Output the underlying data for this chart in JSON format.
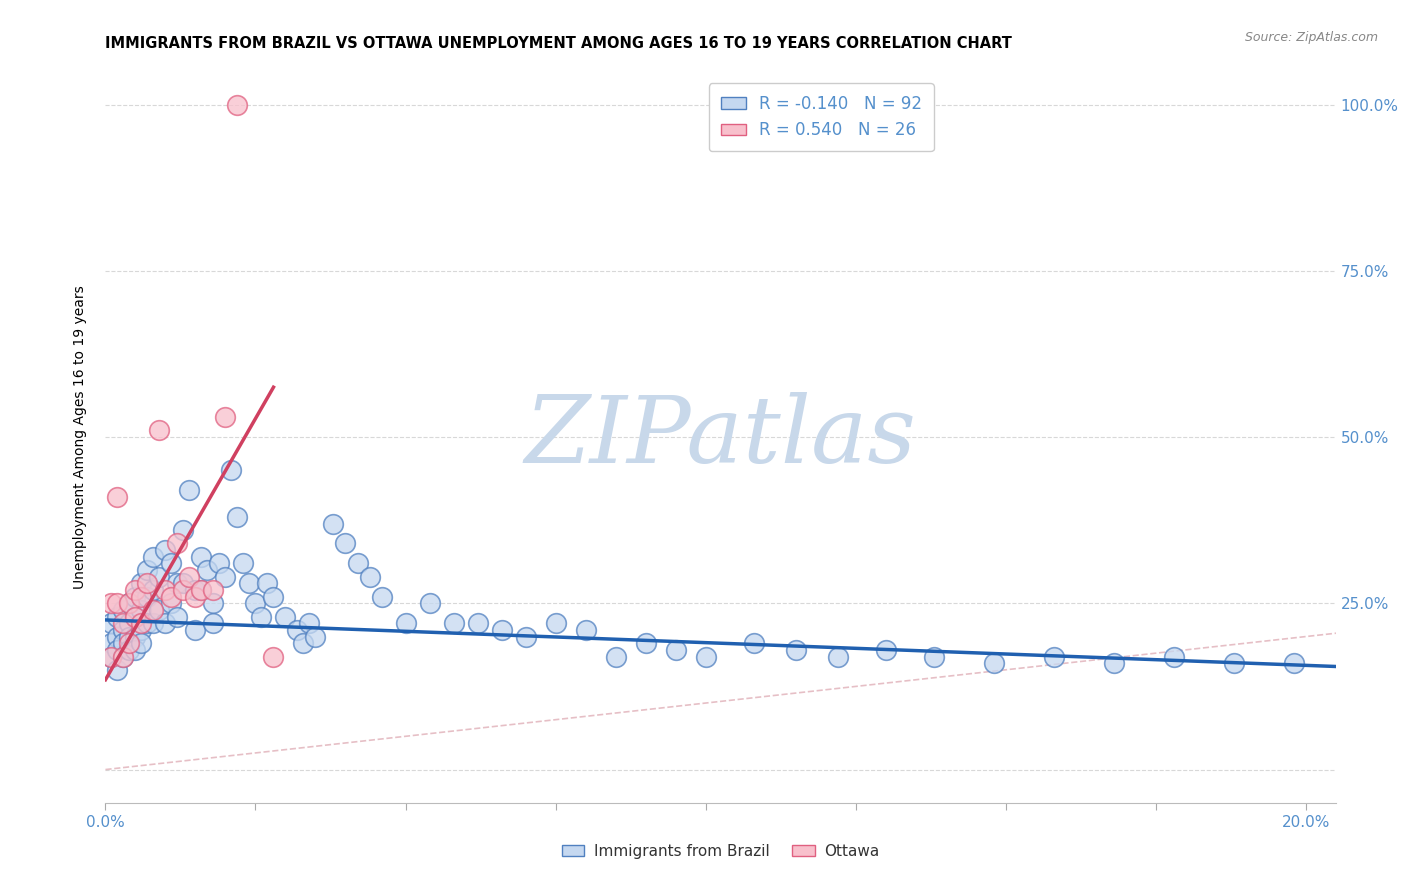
{
  "title": "IMMIGRANTS FROM BRAZIL VS OTTAWA UNEMPLOYMENT AMONG AGES 16 TO 19 YEARS CORRELATION CHART",
  "source": "Source: ZipAtlas.com",
  "ylabel": "Unemployment Among Ages 16 to 19 years",
  "xlim": [
    0.0,
    0.205
  ],
  "ylim": [
    -0.05,
    1.05
  ],
  "blue_R": "-0.140",
  "blue_N": "92",
  "pink_R": "0.540",
  "pink_N": "26",
  "blue_face_color": "#c5d8f0",
  "blue_edge_color": "#5080c0",
  "pink_face_color": "#f8c0cc",
  "pink_edge_color": "#e06080",
  "blue_line_color": "#2060b0",
  "pink_line_color": "#d04060",
  "diag_color": "#e0b0b8",
  "watermark": "ZIPatlas",
  "watermark_color": "#c8d8ea",
  "legend_label_blue": "Immigrants from Brazil",
  "legend_label_pink": "Ottawa",
  "blue_scatter_x": [
    0.001,
    0.001,
    0.001,
    0.002,
    0.002,
    0.002,
    0.002,
    0.003,
    0.003,
    0.003,
    0.003,
    0.004,
    0.004,
    0.004,
    0.004,
    0.005,
    0.005,
    0.005,
    0.005,
    0.006,
    0.006,
    0.006,
    0.006,
    0.007,
    0.007,
    0.007,
    0.008,
    0.008,
    0.008,
    0.009,
    0.009,
    0.01,
    0.01,
    0.011,
    0.011,
    0.012,
    0.012,
    0.013,
    0.013,
    0.014,
    0.015,
    0.015,
    0.016,
    0.016,
    0.017,
    0.018,
    0.018,
    0.019,
    0.02,
    0.021,
    0.022,
    0.023,
    0.024,
    0.025,
    0.026,
    0.027,
    0.028,
    0.03,
    0.032,
    0.033,
    0.034,
    0.035,
    0.038,
    0.04,
    0.042,
    0.044,
    0.046,
    0.05,
    0.054,
    0.058,
    0.062,
    0.066,
    0.07,
    0.075,
    0.08,
    0.085,
    0.09,
    0.095,
    0.1,
    0.108,
    0.115,
    0.122,
    0.13,
    0.138,
    0.148,
    0.158,
    0.168,
    0.178,
    0.188,
    0.198
  ],
  "blue_scatter_y": [
    0.22,
    0.19,
    0.17,
    0.23,
    0.2,
    0.18,
    0.15,
    0.24,
    0.21,
    0.19,
    0.17,
    0.25,
    0.22,
    0.2,
    0.18,
    0.26,
    0.23,
    0.2,
    0.18,
    0.28,
    0.24,
    0.21,
    0.19,
    0.3,
    0.26,
    0.22,
    0.32,
    0.27,
    0.22,
    0.29,
    0.24,
    0.33,
    0.22,
    0.31,
    0.25,
    0.28,
    0.23,
    0.36,
    0.28,
    0.42,
    0.27,
    0.21,
    0.32,
    0.27,
    0.3,
    0.25,
    0.22,
    0.31,
    0.29,
    0.45,
    0.38,
    0.31,
    0.28,
    0.25,
    0.23,
    0.28,
    0.26,
    0.23,
    0.21,
    0.19,
    0.22,
    0.2,
    0.37,
    0.34,
    0.31,
    0.29,
    0.26,
    0.22,
    0.25,
    0.22,
    0.22,
    0.21,
    0.2,
    0.22,
    0.21,
    0.17,
    0.19,
    0.18,
    0.17,
    0.19,
    0.18,
    0.17,
    0.18,
    0.17,
    0.16,
    0.17,
    0.16,
    0.17,
    0.16,
    0.16
  ],
  "pink_scatter_x": [
    0.001,
    0.001,
    0.002,
    0.002,
    0.003,
    0.003,
    0.004,
    0.004,
    0.005,
    0.005,
    0.006,
    0.006,
    0.007,
    0.008,
    0.009,
    0.01,
    0.011,
    0.012,
    0.013,
    0.014,
    0.015,
    0.016,
    0.018,
    0.02,
    0.022,
    0.028
  ],
  "pink_scatter_y": [
    0.25,
    0.17,
    0.41,
    0.25,
    0.22,
    0.17,
    0.25,
    0.19,
    0.27,
    0.23,
    0.26,
    0.22,
    0.28,
    0.24,
    0.51,
    0.27,
    0.26,
    0.34,
    0.27,
    0.29,
    0.26,
    0.27,
    0.27,
    0.53,
    1.0,
    0.17
  ],
  "blue_trend_x": [
    0.0,
    0.205
  ],
  "blue_trend_y": [
    0.225,
    0.155
  ],
  "pink_trend_x": [
    0.0,
    0.028
  ],
  "pink_trend_y": [
    0.135,
    0.575
  ],
  "ytick_positions": [
    0.0,
    0.25,
    0.5,
    0.75,
    1.0
  ],
  "ytick_labels_right": [
    "",
    "25.0%",
    "50.0%",
    "75.0%",
    "100.0%"
  ],
  "xtick_positions": [
    0.0,
    0.025,
    0.05,
    0.075,
    0.1,
    0.125,
    0.15,
    0.175,
    0.2
  ],
  "xtick_labels": [
    "0.0%",
    "",
    "",
    "",
    "",
    "",
    "",
    "",
    "20.0%"
  ],
  "tick_color": "#5590cc",
  "grid_color": "#d8d8d8",
  "title_fontsize": 10.5,
  "axis_label_fontsize": 10,
  "tick_fontsize": 11,
  "legend_fontsize": 12,
  "watermark_fontsize": 68,
  "scatter_size": 200,
  "scatter_linewidth": 1.2,
  "scatter_alpha": 0.75
}
